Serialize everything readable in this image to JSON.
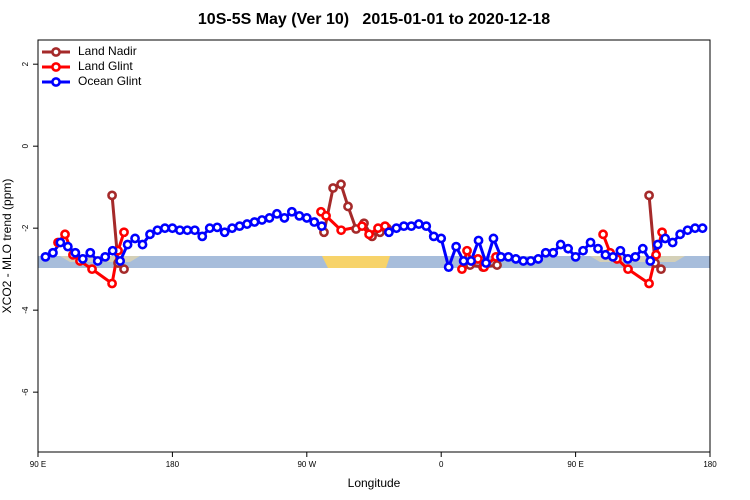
{
  "chart_data": {
    "type": "line",
    "title": "10S-5S May (Ver 10)   2015-01-01 to 2020-12-18",
    "xlabel": "Longitude",
    "ylabel": "XCO2 - MLO trend (ppm)",
    "xlim": [
      90,
      540
    ],
    "ylim": [
      -7.46,
      2.59
    ],
    "xticks": [
      {
        "value": 90,
        "label": "90 E"
      },
      {
        "value": 180,
        "label": "180"
      },
      {
        "value": 270,
        "label": "90 W"
      },
      {
        "value": 360,
        "label": "0"
      },
      {
        "value": 450,
        "label": "90 E"
      },
      {
        "value": 540,
        "label": "180"
      }
    ],
    "yticks": [
      2,
      0,
      -2,
      -4,
      -6
    ],
    "legend": "top-left",
    "series": [
      {
        "name": "Land Nadir",
        "color": "#a52a2a",
        "x": [
          139.6,
          143.6,
          147.6,
          null,
          281.5,
          287.6,
          292.9,
          297.6,
          303,
          308.3,
          313.7,
          319,
          323.7,
          null,
          379.3,
          388,
          397.4,
          null,
          499.2,
          503.2,
          507.2
        ],
        "values": [
          -1.2,
          -2.85,
          -3.0,
          null,
          -2.1,
          -1.02,
          -0.93,
          -1.47,
          -2.02,
          -1.88,
          -2.2,
          -2.1,
          -2.0,
          null,
          -2.9,
          -2.95,
          -2.9,
          null,
          -1.2,
          -2.85,
          -3.0
        ]
      },
      {
        "name": "Land Glint",
        "color": "#ff0000",
        "x": [
          103.4,
          108.1,
          113.4,
          118.1,
          126.2,
          139.6,
          143.6,
          147.6,
          null,
          279.5,
          282.9,
          293,
          307,
          311.7,
          317.7,
          322.4,
          null,
          373.9,
          377.3,
          380.6,
          384.6,
          388.7,
          396.7,
          null,
          468.4,
          473.1,
          477.7,
          485.1,
          499.2,
          503.9,
          507.9
        ],
        "values": [
          -2.35,
          -2.15,
          -2.65,
          -2.8,
          -3.0,
          -3.35,
          -2.55,
          -2.1,
          null,
          -1.6,
          -1.7,
          -2.05,
          -1.95,
          -2.15,
          -2.0,
          -1.95,
          null,
          -3.0,
          -2.55,
          -2.8,
          -2.75,
          -2.95,
          -2.7,
          null,
          -2.15,
          -2.6,
          -2.75,
          -3.0,
          -3.35,
          -2.65,
          -2.1
        ]
      },
      {
        "name": "Ocean Glint",
        "color": "#0000ff",
        "x": [
          95,
          100,
          105,
          110,
          115,
          120,
          125,
          130,
          135,
          140,
          145,
          150,
          155,
          160,
          165,
          170,
          175,
          180,
          185,
          190,
          195,
          200,
          205,
          210,
          215,
          220,
          225,
          230,
          235,
          240,
          245,
          250,
          255,
          260,
          265,
          270,
          275,
          280,
          285,
          290,
          295,
          300,
          305,
          310,
          315,
          320,
          325,
          330,
          335,
          340,
          345,
          350,
          355,
          360,
          365,
          370,
          375,
          380,
          385,
          390,
          395,
          400,
          405,
          410,
          415,
          420,
          425,
          430,
          435,
          440,
          445,
          450,
          455,
          460,
          465,
          470,
          475,
          480,
          485,
          490,
          495,
          500,
          505,
          510,
          515,
          520,
          525,
          530,
          535
        ],
        "values": [
          -2.7,
          -2.6,
          -2.35,
          -2.45,
          -2.6,
          -2.75,
          -2.6,
          -2.8,
          -2.7,
          -2.55,
          -2.8,
          -2.4,
          -2.25,
          -2.4,
          -2.15,
          -2.05,
          -2.0,
          -2.0,
          -2.05,
          -2.05,
          -2.05,
          -2.2,
          -2.0,
          -1.98,
          -2.1,
          -2.0,
          -1.95,
          -1.9,
          -1.85,
          -1.8,
          -1.75,
          -1.65,
          -1.75,
          -1.6,
          -1.7,
          -1.75,
          -1.85,
          -1.95,
          null,
          null,
          null,
          null,
          null,
          null,
          null,
          null,
          -2.1,
          -2.0,
          -1.95,
          -1.95,
          -1.9,
          -1.95,
          -2.2,
          -2.25,
          -2.95,
          -2.45,
          -2.8,
          -2.8,
          -2.3,
          -2.85,
          -2.25,
          -2.7,
          -2.7,
          -2.75,
          -2.8,
          -2.8,
          -2.75,
          -2.6,
          -2.6,
          -2.4,
          -2.5,
          -2.7,
          -2.55,
          -2.35,
          -2.5,
          -2.65,
          -2.7,
          -2.55,
          -2.75,
          -2.7,
          -2.5,
          -2.8,
          -2.4,
          -2.25,
          -2.35,
          -2.15,
          -2.05,
          -2.0,
          -2.0
        ]
      }
    ]
  }
}
